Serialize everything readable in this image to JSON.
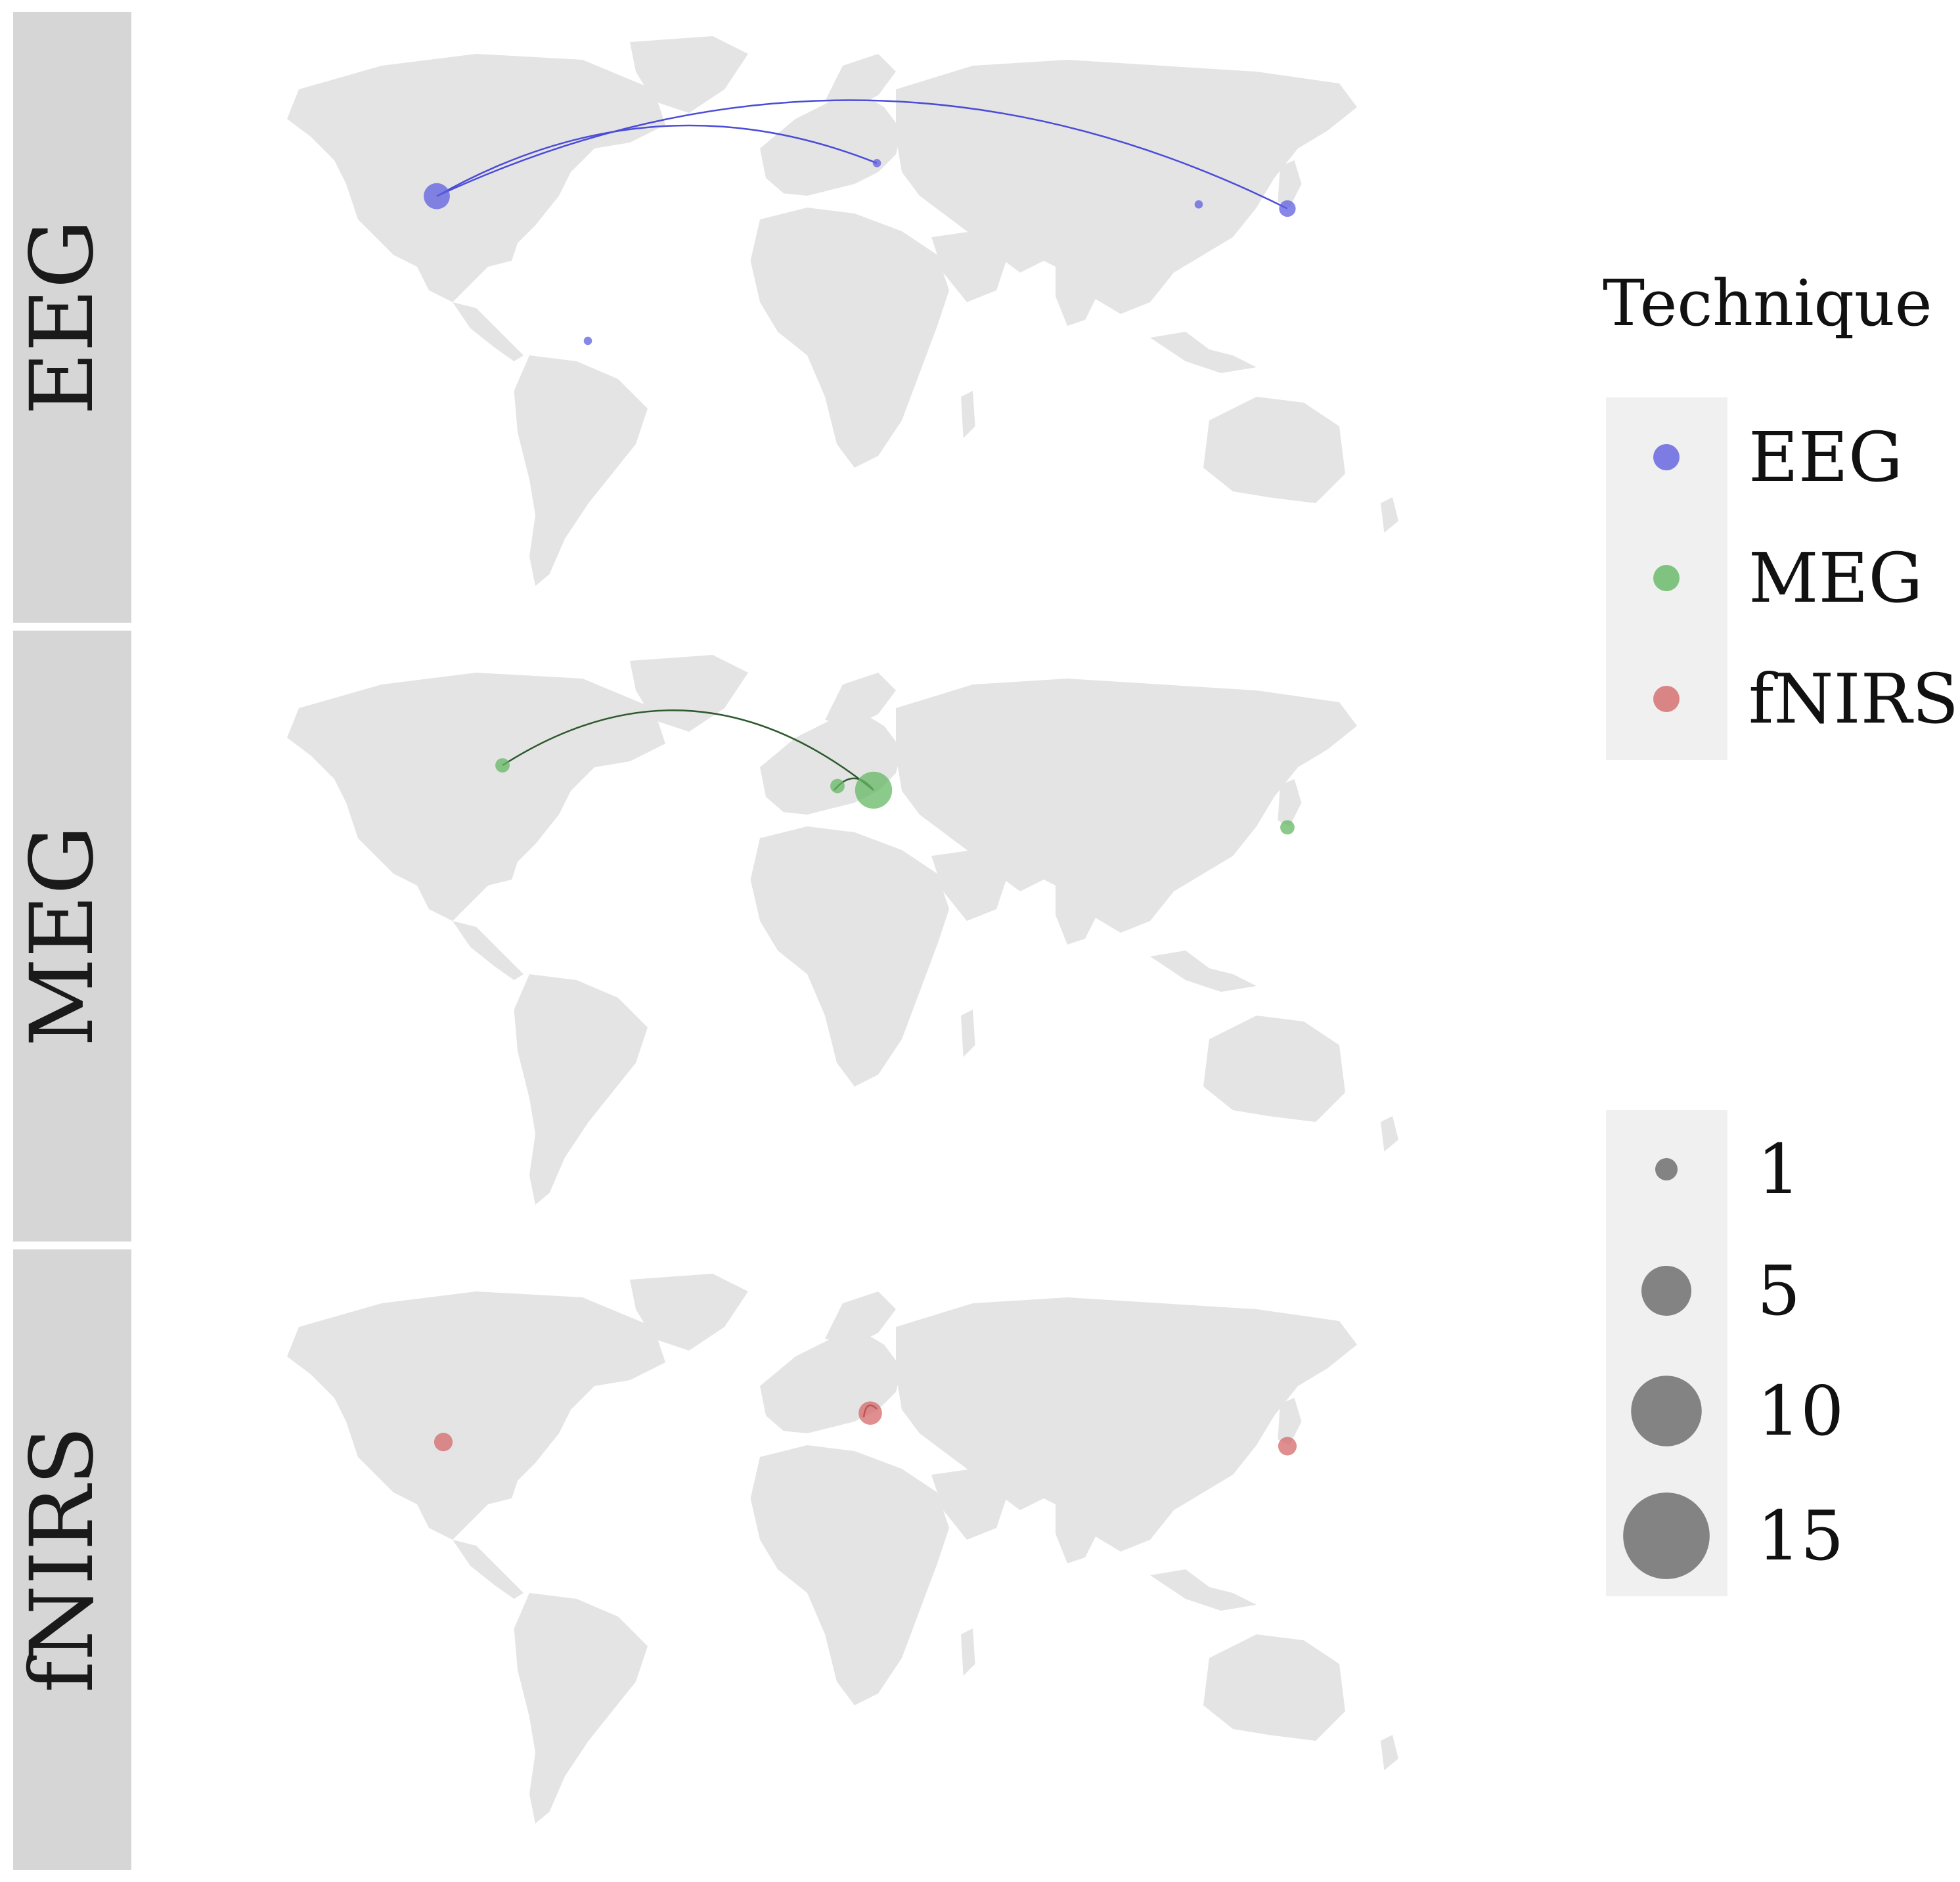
{
  "chart_data": {
    "type": "map",
    "facets": [
      {
        "label": "EEG",
        "color": "#5f5fe0",
        "line_color": "#4c4cd8",
        "points": [
          {
            "place": "western USA",
            "lon": -120,
            "lat": 40,
            "count": 10
          },
          {
            "place": "Colombia",
            "lon": -74,
            "lat": 5,
            "count": 1
          },
          {
            "place": "Austria",
            "lon": 14,
            "lat": 48,
            "count": 1
          },
          {
            "place": "China",
            "lon": 112,
            "lat": 38,
            "count": 1
          },
          {
            "place": "Japan",
            "lon": 139,
            "lat": 37,
            "count": 4
          }
        ],
        "links": [
          {
            "from": [
              -120,
              40
            ],
            "to": [
              14,
              48
            ],
            "bend": 0.12
          },
          {
            "from": [
              -120,
              40
            ],
            "to": [
              139,
              37
            ],
            "bend": 0.12
          }
        ]
      },
      {
        "label": "MEG",
        "color": "#64b864",
        "line_color": "#2e5a2e",
        "points": [
          {
            "place": "central Canada",
            "lon": -100,
            "lat": 52,
            "count": 3
          },
          {
            "place": "France",
            "lon": 2,
            "lat": 47,
            "count": 3
          },
          {
            "place": "Central Europe",
            "lon": 13,
            "lat": 46,
            "count": 20
          },
          {
            "place": "Japan",
            "lon": 139,
            "lat": 37,
            "count": 3
          }
        ],
        "links": [
          {
            "from": [
              -100,
              52
            ],
            "to": [
              13,
              46
            ],
            "bend": 0.18
          },
          {
            "from": [
              1,
              46
            ],
            "to": [
              13,
              46
            ],
            "bend": 0.3
          }
        ]
      },
      {
        "label": "fNIRS",
        "color": "#d46a6a",
        "line_color": "#7a1a1a",
        "points": [
          {
            "place": "western USA",
            "lon": -118,
            "lat": 38,
            "count": 5
          },
          {
            "place": "Italy",
            "lon": 12,
            "lat": 45,
            "count": 8
          },
          {
            "place": "Japan",
            "lon": 139,
            "lat": 37,
            "count": 5
          }
        ],
        "links": [
          {
            "from": [
              10,
              44
            ],
            "to": [
              14,
              46
            ],
            "bend": 0.5
          }
        ]
      }
    ],
    "legend": {
      "color_title": "Technique",
      "color_items": [
        {
          "label": "EEG",
          "color": "#5f5fe0"
        },
        {
          "label": "MEG",
          "color": "#64b864"
        },
        {
          "label": "fNIRS",
          "color": "#d46a6a"
        }
      ],
      "size_items": [
        {
          "label": "1",
          "value": 1
        },
        {
          "label": "5",
          "value": 5
        },
        {
          "label": "10",
          "value": 10
        },
        {
          "label": "15",
          "value": 15
        }
      ],
      "size_color": "#777777"
    },
    "land_color": "#e4e4e4",
    "strip_color": "#d6d6d6"
  }
}
